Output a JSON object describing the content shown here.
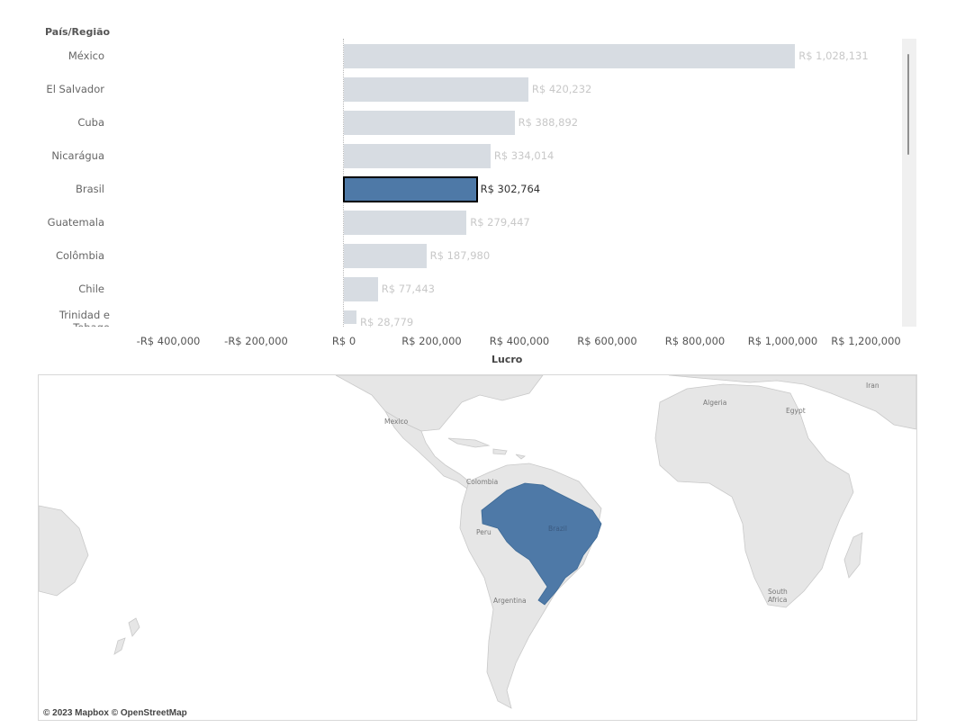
{
  "colors": {
    "bar_default": "#d7dce2",
    "bar_selected": "#4e79a7",
    "map_land": "#e4e4e4",
    "map_highlight": "#4e79a7"
  },
  "chart_data": {
    "type": "bar",
    "orientation": "horizontal",
    "row_header": "País/Região",
    "xlabel": "Lucro",
    "selected": "Brasil",
    "categories": [
      "México",
      "El Salvador",
      "Cuba",
      "Nicarágua",
      "Brasil",
      "Guatemala",
      "Colômbia",
      "Chile",
      "Trinidad e Tobago"
    ],
    "values": [
      1028131,
      420232,
      388892,
      334014,
      302764,
      279447,
      187980,
      77443,
      28779
    ],
    "value_labels": [
      "R$ 1,028,131",
      "R$ 420,232",
      "R$ 388,892",
      "R$ 334,014",
      "R$ 302,764",
      "R$ 279,447",
      "R$ 187,980",
      "R$ 77,443",
      "R$ 28,779"
    ],
    "xlim": [
      -400000,
      1200000
    ],
    "ticks": [
      -400000,
      -200000,
      0,
      200000,
      400000,
      600000,
      800000,
      1000000,
      1200000
    ],
    "tick_labels": [
      "-R$ 400,000",
      "-R$ 200,000",
      "R$ 0",
      "R$ 200,000",
      "R$ 400,000",
      "R$ 600,000",
      "R$ 800,000",
      "R$ 1,000,000",
      "R$ 1,200,000"
    ]
  },
  "map": {
    "labels": {
      "mexico": "Mexico",
      "colombia": "Colombia",
      "peru": "Peru",
      "brazil": "Brazil",
      "argentina": "Argentina",
      "algeria": "Algeria",
      "egypt": "Egypt",
      "iran": "Iran",
      "south_africa": "South Africa"
    },
    "attribution": "© 2023 Mapbox © OpenStreetMap"
  }
}
